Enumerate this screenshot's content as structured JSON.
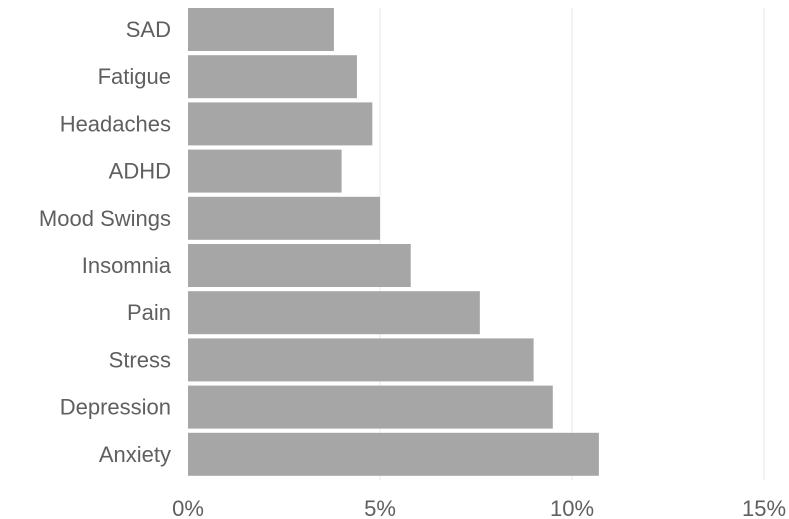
{
  "chart_data": {
    "type": "bar",
    "orientation": "horizontal",
    "categories": [
      "SAD",
      "Fatigue",
      "Headaches",
      "ADHD",
      "Mood Swings",
      "Insomnia",
      "Pain",
      "Stress",
      "Depression",
      "Anxiety"
    ],
    "values": [
      3.8,
      4.4,
      4.8,
      4.0,
      5.0,
      5.8,
      7.6,
      9.0,
      9.5,
      10.7
    ],
    "xlim": [
      0,
      15
    ],
    "xticks": [
      0,
      5,
      10,
      15
    ],
    "xtick_labels": [
      "0%",
      "5%",
      "10%",
      "15%"
    ],
    "grid": "vertical",
    "bar_color": "#a6a6a6"
  }
}
